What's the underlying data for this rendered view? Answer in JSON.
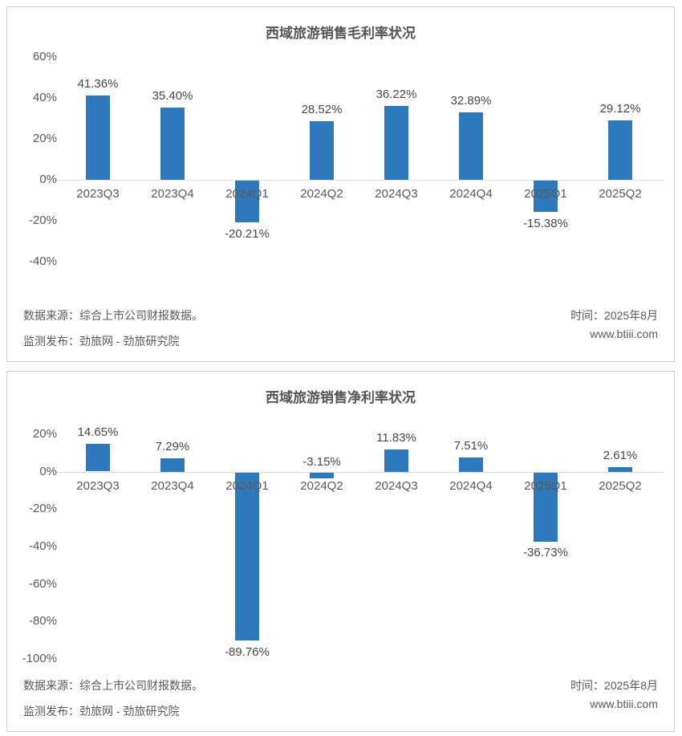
{
  "colors": {
    "bar": "#2E79BC",
    "axis_line": "#D9D9D9",
    "text_gray": "#595959",
    "title_gray": "#555555",
    "panel_border": "#C9CDD0"
  },
  "footer": {
    "source_line": "数据来源：综合上市公司财报数据。",
    "publisher_line": "监测发布：劲旅网 - 劲旅研究院",
    "time_line": "时间：2025年8月",
    "website": "www.btiii.com"
  },
  "chart_data": [
    {
      "type": "bar",
      "title": "西域旅游销售毛利率状况",
      "categories": [
        "2023Q3",
        "2023Q4",
        "2024Q1",
        "2024Q2",
        "2024Q3",
        "2024Q4",
        "2025Q1",
        "2025Q2"
      ],
      "values": [
        41.36,
        35.4,
        -20.21,
        28.52,
        36.22,
        32.89,
        -15.38,
        29.12
      ],
      "value_labels": [
        "41.36%",
        "35.40%",
        "-20.21%",
        "28.52%",
        "36.22%",
        "32.89%",
        "-15.38%",
        "29.12%"
      ],
      "xlabel": "",
      "ylabel": "",
      "ylim": [
        -40,
        60
      ],
      "ytick_values": [
        60,
        40,
        20,
        0,
        -20,
        -40
      ],
      "ytick_labels": [
        "60%",
        "40%",
        "20%",
        "0%",
        "-20%",
        "-40%"
      ],
      "grid": false,
      "legend": null,
      "bar_color": "#2E79BC"
    },
    {
      "type": "bar",
      "title": "西域旅游销售净利率状况",
      "categories": [
        "2023Q3",
        "2023Q4",
        "2024Q1",
        "2024Q2",
        "2024Q3",
        "2024Q4",
        "2025Q1",
        "2025Q2"
      ],
      "values": [
        14.65,
        7.29,
        -89.76,
        -3.15,
        11.83,
        7.51,
        -36.73,
        2.61
      ],
      "value_labels": [
        "14.65%",
        "7.29%",
        "-89.76%",
        "-3.15%",
        "11.83%",
        "7.51%",
        "-36.73%",
        "2.61%"
      ],
      "xlabel": "",
      "ylabel": "",
      "ylim": [
        -100,
        20
      ],
      "ytick_values": [
        20,
        0,
        -20,
        -40,
        -60,
        -80,
        -100
      ],
      "ytick_labels": [
        "20%",
        "0%",
        "-20%",
        "-40%",
        "-60%",
        "-80%",
        "-100%"
      ],
      "grid": false,
      "legend": null,
      "bar_color": "#2E79BC"
    }
  ]
}
